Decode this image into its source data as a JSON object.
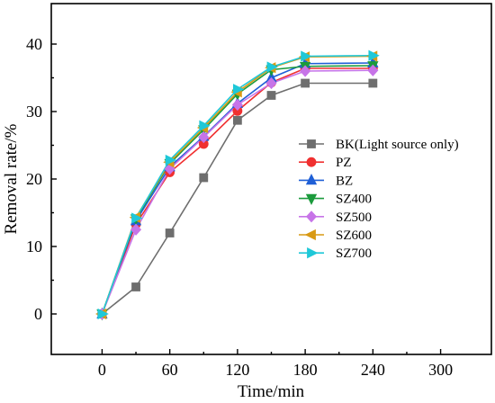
{
  "chart_data": {
    "type": "line",
    "xlabel": "Time/min",
    "ylabel": "Removal rate/%",
    "xlim": [
      -45,
      345
    ],
    "ylim": [
      -6,
      46
    ],
    "xticks": [
      0,
      60,
      120,
      180,
      240,
      300
    ],
    "yticks": [
      0,
      10,
      20,
      30,
      40
    ],
    "grid": false,
    "legend_position": "right",
    "x": [
      0,
      30,
      60,
      90,
      120,
      150,
      180,
      240
    ],
    "series": [
      {
        "name": "BK(Light source only)",
        "color": "#6e6e6e",
        "marker": "square",
        "values": [
          0,
          4.0,
          12.0,
          20.2,
          28.7,
          32.4,
          34.2,
          34.2
        ]
      },
      {
        "name": "PZ",
        "color": "#f03030",
        "marker": "circle",
        "values": [
          0,
          13.3,
          21.0,
          25.2,
          30.1,
          34.3,
          36.4,
          36.4
        ]
      },
      {
        "name": "BZ",
        "color": "#1f5fd6",
        "marker": "triangle-up",
        "values": [
          0,
          13.8,
          21.8,
          26.3,
          31.2,
          35.0,
          37.1,
          37.2
        ]
      },
      {
        "name": "SZ400",
        "color": "#1b9a3c",
        "marker": "triangle-down",
        "values": [
          0,
          14.1,
          22.3,
          27.3,
          32.6,
          36.2,
          36.7,
          36.8
        ]
      },
      {
        "name": "SZ500",
        "color": "#c774e8",
        "marker": "diamond",
        "values": [
          0,
          12.5,
          21.5,
          26.2,
          31.0,
          34.2,
          36.0,
          36.1
        ]
      },
      {
        "name": "SZ600",
        "color": "#d99a14",
        "marker": "triangle-left",
        "values": [
          0,
          14.3,
          22.5,
          27.6,
          32.9,
          36.5,
          38.1,
          38.2
        ]
      },
      {
        "name": "SZ700",
        "color": "#1fc8d8",
        "marker": "triangle-right",
        "values": [
          0,
          14.2,
          22.8,
          27.9,
          33.3,
          36.6,
          38.2,
          38.3
        ]
      }
    ]
  }
}
